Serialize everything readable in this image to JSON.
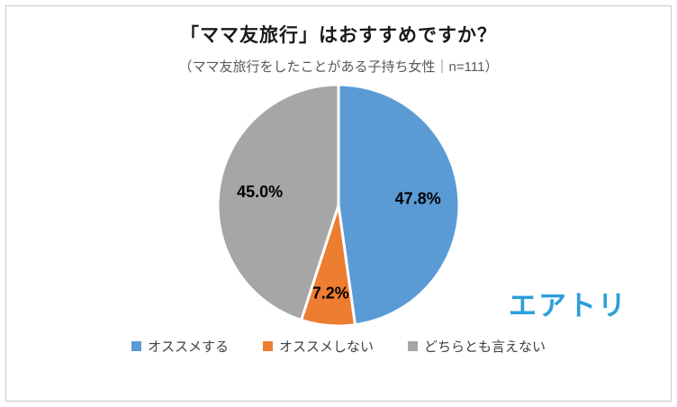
{
  "page": {
    "brand": "エアトリ",
    "brand_color": "#2b9fd9",
    "background": "#ffffff",
    "border_color": "#c9c9c9"
  },
  "chart_data": {
    "type": "pie",
    "title": "「ママ友旅行」はおすすめですか？",
    "subtitle": "（ママ友旅行をしたことがある子持ち女性｜n=111）",
    "categories": [
      "オススメする",
      "オススメしない",
      "どちらとも言えない"
    ],
    "values": [
      47.8,
      7.2,
      45.0
    ],
    "data_labels": [
      "47.8%",
      "7.2%",
      "45.0%"
    ],
    "colors": [
      "#5b9bd5",
      "#ed7d31",
      "#a6a6a6"
    ],
    "start_angle_deg": 0,
    "direction": "clockwise",
    "slice_border_color": "#ffffff",
    "legend_position": "bottom",
    "legend_items": [
      {
        "label": "オススメする",
        "color": "#5b9bd5"
      },
      {
        "label": "オススメしない",
        "color": "#ed7d31"
      },
      {
        "label": "どちらとも言えない",
        "color": "#a6a6a6"
      }
    ]
  }
}
